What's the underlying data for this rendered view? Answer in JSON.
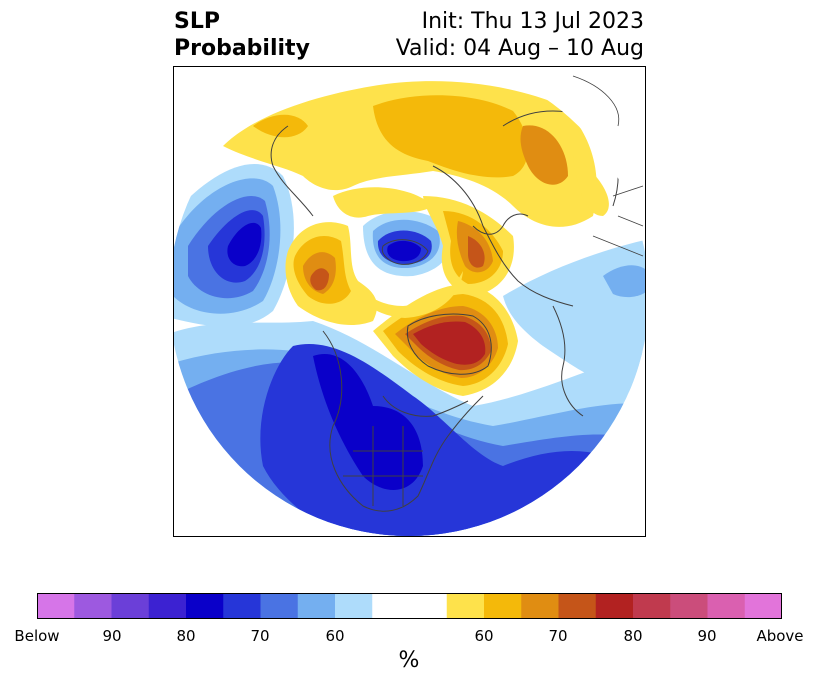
{
  "title": {
    "variable": "SLP",
    "kind": "Probability",
    "init": "Init: Thu 13 Jul 2023",
    "valid": "Valid: 04 Aug – 10 Aug"
  },
  "colorbar": {
    "label": "%",
    "colors": [
      "#d675e8",
      "#9d59e0",
      "#6b3fd8",
      "#3c22d2",
      "#0a00c9",
      "#2636d8",
      "#4a73e3",
      "#74aff0",
      "#aedcfb",
      "#ffffff",
      "#ffffff",
      "#fee24b",
      "#f4b90a",
      "#e08d12",
      "#c55519",
      "#b22221",
      "#c03a4e",
      "#cb4d7b",
      "#da60b0",
      "#e274da"
    ],
    "ticks": [
      "Below",
      "90",
      "80",
      "70",
      "60",
      "60",
      "70",
      "80",
      "90",
      "Above"
    ]
  },
  "map": {
    "projection": "north-polar-stereographic",
    "border_color": "#000000",
    "coast_color": "#404040",
    "below_colors": {
      "b60": "#aedcfb",
      "b65": "#74aff0",
      "b70": "#4a73e3",
      "b75": "#2636d8",
      "b80": "#0a00c9"
    },
    "above_colors": {
      "a55": "#fee24b",
      "a60": "#f4b90a",
      "a65": "#e08d12",
      "a70": "#c55519",
      "a75": "#b22221"
    }
  }
}
